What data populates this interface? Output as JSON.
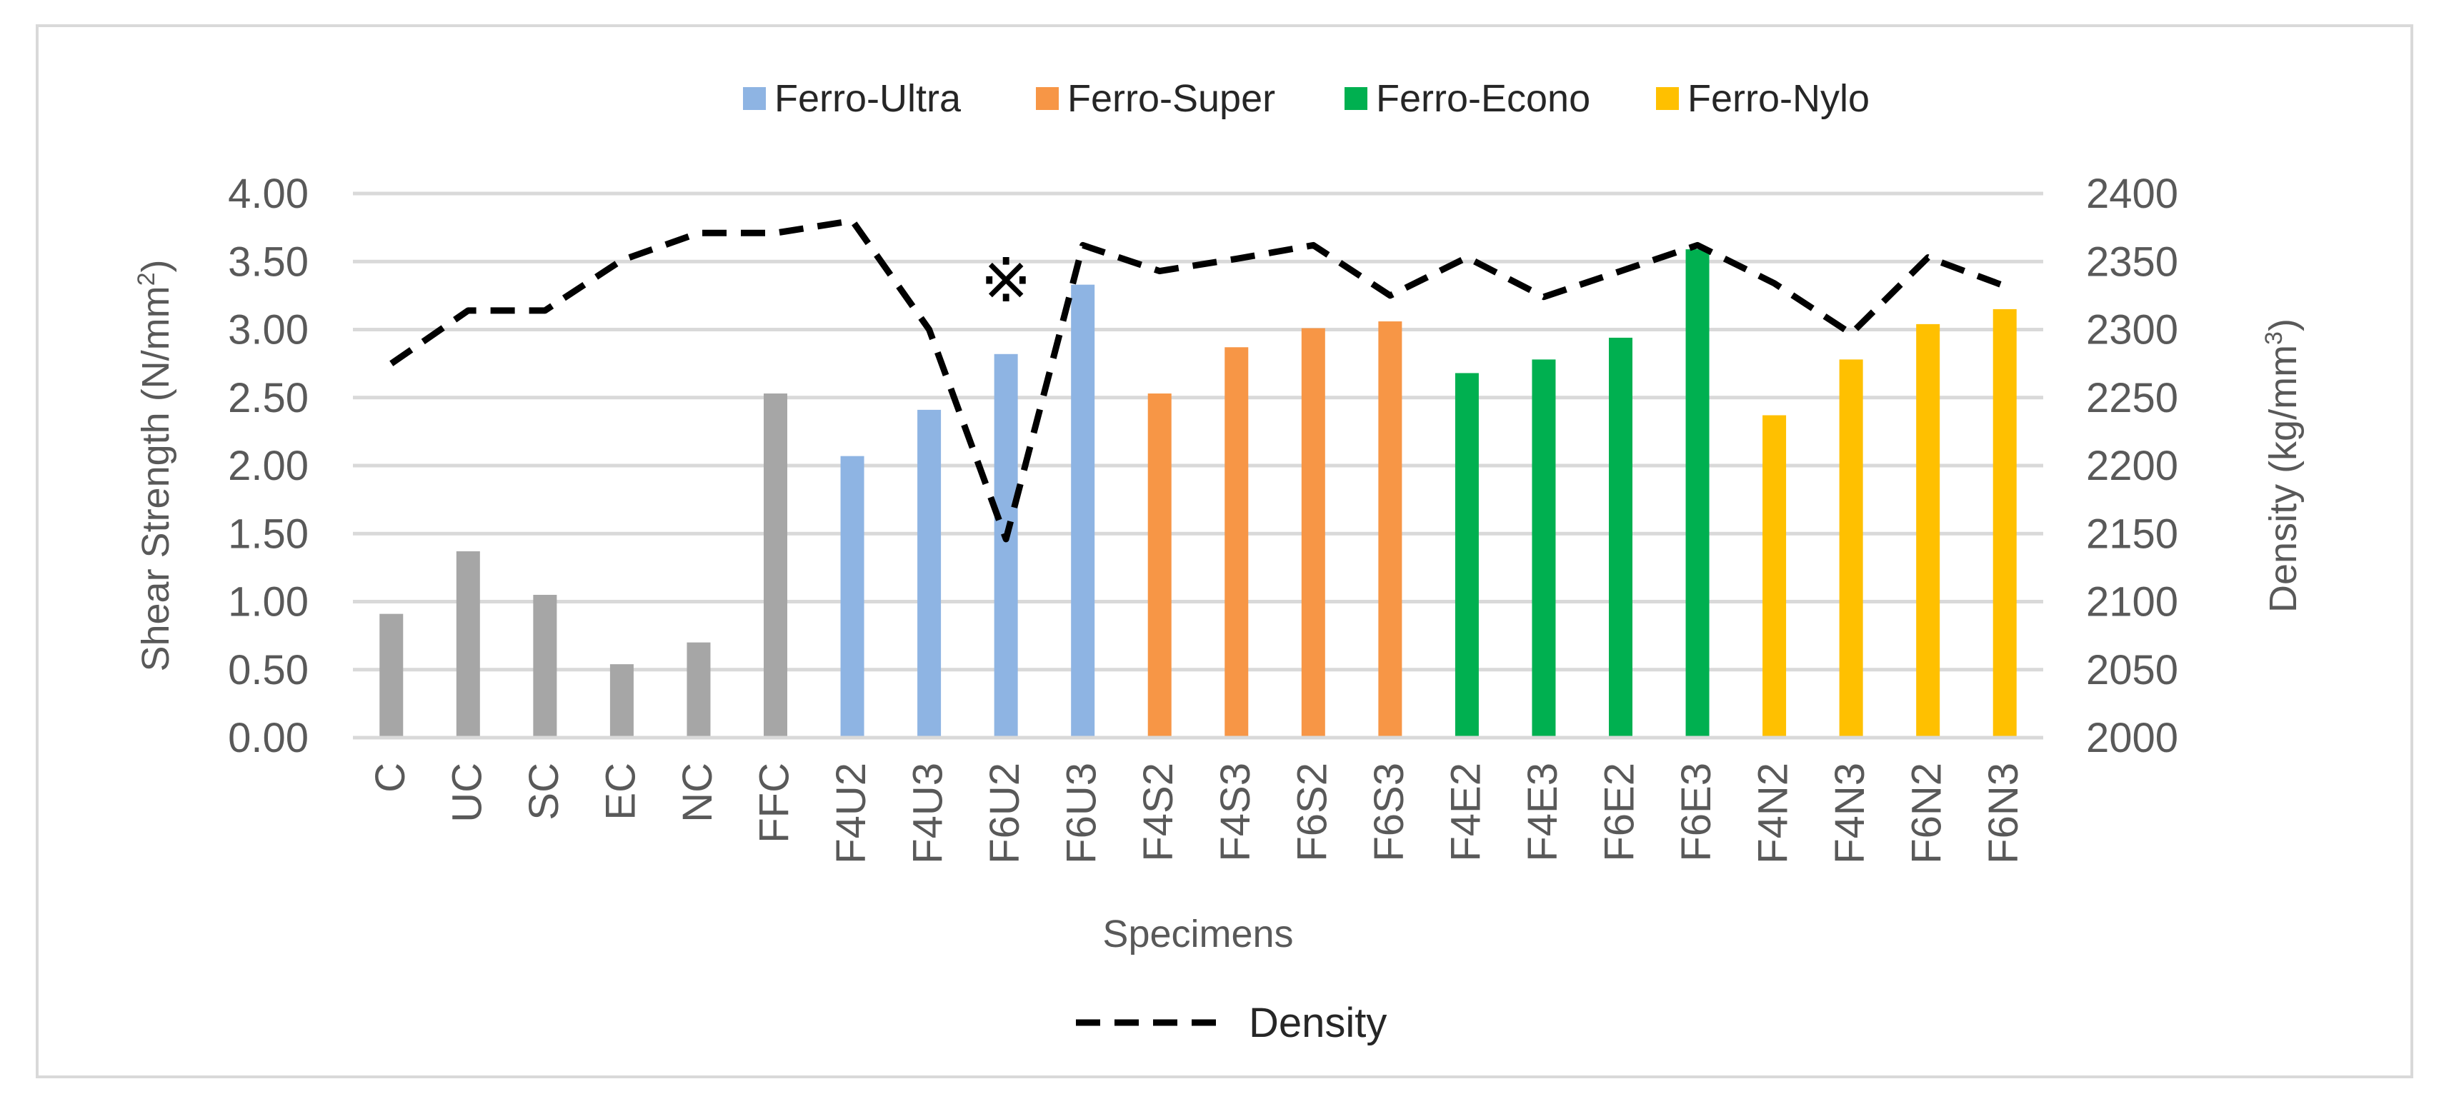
{
  "chart_data": {
    "type": "bar",
    "categories": [
      "C",
      "UC",
      "SC",
      "EC",
      "NC",
      "FFC",
      "F4U2",
      "F4U3",
      "F6U2",
      "F6U3",
      "F4S2",
      "F4S3",
      "F6S2",
      "F6S3",
      "F4E2",
      "F4E3",
      "F6E2",
      "F6E3",
      "F4N2",
      "F4N3",
      "F6N2",
      "F6N3"
    ],
    "series": [
      {
        "name": "Shear Strength",
        "values": [
          0.91,
          1.37,
          1.05,
          0.54,
          0.7,
          2.53,
          2.07,
          2.41,
          2.82,
          3.33,
          2.53,
          2.87,
          3.01,
          3.06,
          2.68,
          2.78,
          2.94,
          3.59,
          2.37,
          2.78,
          3.04,
          3.15
        ],
        "axis": "left",
        "colors": [
          "#a6a6a6",
          "#a6a6a6",
          "#a6a6a6",
          "#a6a6a6",
          "#a6a6a6",
          "#a6a6a6",
          "#8eb4e3",
          "#8eb4e3",
          "#8eb4e3",
          "#8eb4e3",
          "#f79646",
          "#f79646",
          "#f79646",
          "#f79646",
          "#00b050",
          "#00b050",
          "#00b050",
          "#00b050",
          "#ffc000",
          "#ffc000",
          "#ffc000",
          "#ffc000"
        ]
      },
      {
        "name": "Density",
        "type": "line",
        "style": "dashed",
        "axis": "right",
        "color": "#000000",
        "values": [
          2275,
          2314,
          2314,
          2351,
          2371,
          2371,
          2380,
          2300,
          2146,
          2362,
          2343,
          2352,
          2362,
          2325,
          2353,
          2324,
          2343,
          2362,
          2334,
          2297,
          2353,
          2332
        ]
      }
    ],
    "groups": [
      {
        "name": "Ferro-Ultra",
        "color": "#8eb4e3"
      },
      {
        "name": "Ferro-Super",
        "color": "#f79646"
      },
      {
        "name": "Ferro-Econo",
        "color": "#00b050"
      },
      {
        "name": "Ferro-Nylo",
        "color": "#ffc000"
      }
    ],
    "xlabel": "Specimens",
    "ylabel": "Shear Strength (N/mm",
    "ylabel_sup": "2",
    "ylabel_end": ")",
    "y2label": "Density (kg/mm",
    "y2label_sup": "3",
    "y2label_end": ")",
    "ylim": [
      0,
      4
    ],
    "yticks": [
      "0.00",
      "0.50",
      "1.00",
      "1.50",
      "2.00",
      "2.50",
      "3.00",
      "3.50",
      "4.00"
    ],
    "y2lim": [
      2000,
      2400
    ],
    "y2ticks": [
      "2000",
      "2050",
      "2100",
      "2150",
      "2200",
      "2250",
      "2300",
      "2350",
      "2400"
    ],
    "grid": true,
    "annotation": "※",
    "annotation_category": "F6U2",
    "line_legend": "Density",
    "legend_position": "top"
  }
}
